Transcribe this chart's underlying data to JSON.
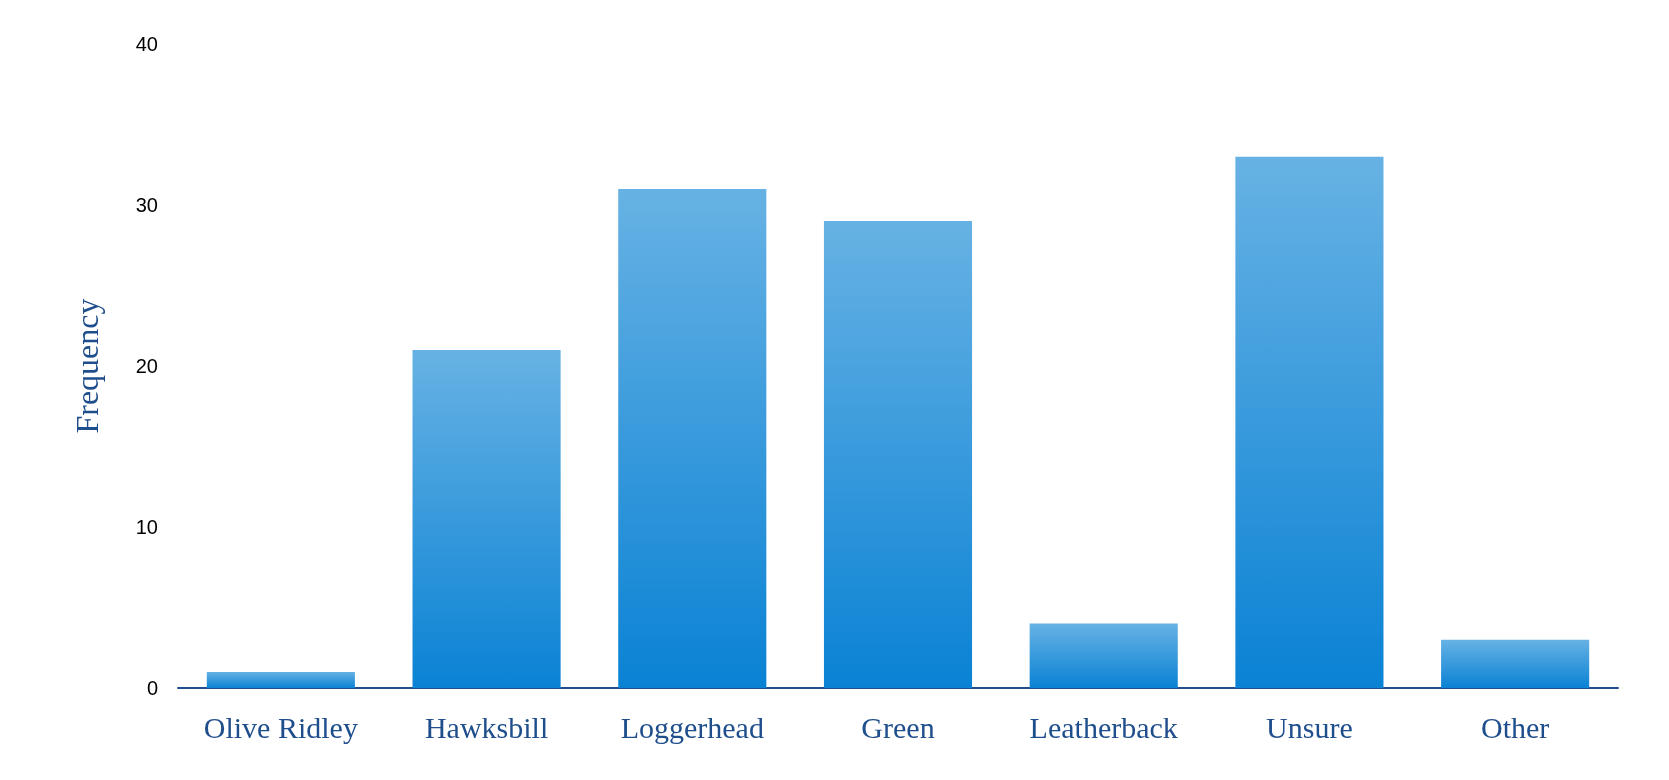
{
  "chart_data": {
    "type": "bar",
    "ylabel": "Frequency",
    "categories": [
      "Olive Ridley",
      "Hawksbill",
      "Loggerhead",
      "Green",
      "Leatherback",
      "Unsure",
      "Other"
    ],
    "values": [
      1,
      21,
      31,
      29,
      4,
      33,
      3
    ],
    "color": "#0a82d4",
    "ylim": [
      0,
      40
    ],
    "yticks": [
      0,
      10,
      20,
      30,
      40
    ],
    "grid": false
  }
}
